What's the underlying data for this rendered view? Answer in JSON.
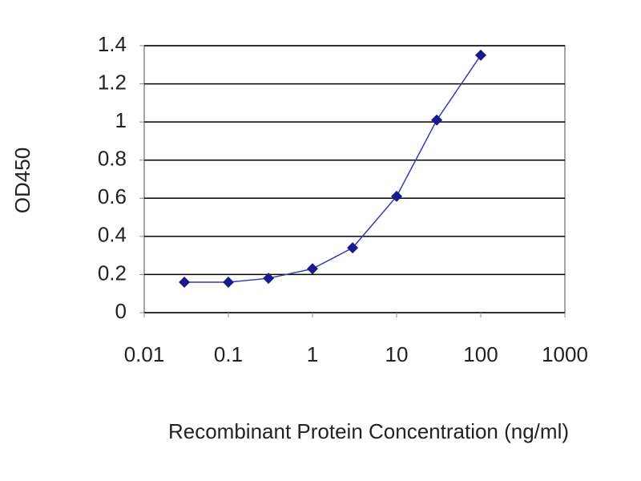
{
  "chart_data": {
    "type": "line",
    "x_label": "Recombinant Protein Concentration (ng/ml)",
    "y_label": "OD450",
    "x": [
      0.03,
      0.1,
      0.3,
      1,
      3,
      10,
      30,
      100
    ],
    "values": [
      0.16,
      0.16,
      0.18,
      0.23,
      0.34,
      0.61,
      1.01,
      1.35
    ],
    "color": "#1a1a8c",
    "line_color": "#3a3ab0",
    "xscale": "log",
    "xlim": [
      0.01,
      1000
    ],
    "xticks": [
      0.01,
      0.1,
      1,
      10,
      100,
      1000
    ],
    "ylim": [
      0,
      1.4
    ],
    "yticks": [
      0,
      0.2,
      0.4,
      0.6,
      0.8,
      1,
      1.2,
      1.4
    ],
    "grid": true
  }
}
